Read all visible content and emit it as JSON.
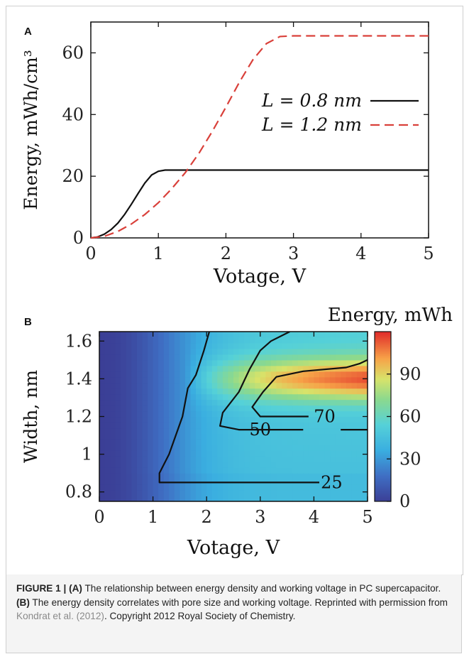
{
  "chart_data": [
    {
      "panel": "A",
      "type": "line",
      "xlabel": "Votage, V",
      "ylabel": "Energy, mWh/cm³",
      "xlim": [
        0,
        5
      ],
      "ylim": [
        0,
        70
      ],
      "xticks": [
        "0",
        "1",
        "2",
        "3",
        "4",
        "5"
      ],
      "yticks": [
        "0",
        "20",
        "40",
        "60"
      ],
      "legend_position": "right",
      "series": [
        {
          "name": "L = 0.8 nm",
          "color": "#111111",
          "style": "solid",
          "x": [
            0,
            0.1,
            0.2,
            0.3,
            0.4,
            0.5,
            0.6,
            0.7,
            0.8,
            0.9,
            1.0,
            1.1,
            1.2,
            1.4,
            2,
            3,
            4,
            5
          ],
          "y": [
            0,
            0.3,
            1.2,
            2.7,
            4.8,
            7.6,
            10.9,
            14.4,
            17.8,
            20.4,
            21.6,
            22,
            22,
            22,
            22,
            22,
            22,
            22
          ]
        },
        {
          "name": "L = 1.2 nm",
          "color": "#d9403a",
          "style": "dashed",
          "x": [
            0,
            0.2,
            0.4,
            0.6,
            0.8,
            1.0,
            1.2,
            1.4,
            1.6,
            1.8,
            2.0,
            2.2,
            2.4,
            2.6,
            2.8,
            3.0,
            3.5,
            4,
            5
          ],
          "y": [
            0,
            0.5,
            2.1,
            4.5,
            7.6,
            11.4,
            16.0,
            21.2,
            27.4,
            34.6,
            42.4,
            50.5,
            57.8,
            63.0,
            65.3,
            65.5,
            65.5,
            65.5,
            65.5
          ]
        }
      ]
    },
    {
      "panel": "B",
      "type": "heatmap",
      "colorbar_label": "Energy, mWh",
      "xlabel": "Votage, V",
      "ylabel": "Width, nm",
      "xlim": [
        0,
        5
      ],
      "ylim": [
        0.75,
        1.65
      ],
      "xticks": [
        "0",
        "1",
        "2",
        "3",
        "4",
        "5"
      ],
      "yticks": [
        "0.8",
        "1",
        "1.2",
        "1.4",
        "1.6"
      ],
      "colorbar_ticks": [
        "0",
        "30",
        "60",
        "90"
      ],
      "colorbar_range": [
        0,
        120
      ],
      "contour_labels": [
        {
          "text": "25",
          "level": 25
        },
        {
          "text": "50",
          "level": 50
        },
        {
          "text": "70",
          "level": 70
        }
      ],
      "contours": [
        {
          "level": 25,
          "points": [
            [
              4.1,
              0.85
            ],
            [
              1.12,
              0.85
            ],
            [
              1.12,
              0.9
            ],
            [
              1.3,
              1.0
            ],
            [
              1.55,
              1.2
            ],
            [
              1.65,
              1.35
            ],
            [
              1.8,
              1.42
            ],
            [
              1.95,
              1.55
            ],
            [
              2.05,
              1.65
            ]
          ]
        },
        {
          "level": 50,
          "points": [
            [
              3.8,
              1.13
            ],
            [
              2.6,
              1.13
            ],
            [
              2.25,
              1.15
            ],
            [
              2.3,
              1.22
            ],
            [
              2.6,
              1.33
            ],
            [
              2.8,
              1.45
            ],
            [
              3.0,
              1.55
            ],
            [
              3.2,
              1.6
            ],
            [
              3.55,
              1.65
            ]
          ]
        },
        {
          "level": 70,
          "points": [
            [
              3.9,
              1.2
            ],
            [
              3.0,
              1.2
            ],
            [
              2.85,
              1.25
            ],
            [
              3.05,
              1.33
            ],
            [
              3.3,
              1.41
            ],
            [
              3.8,
              1.44
            ],
            [
              4.6,
              1.46
            ],
            [
              4.85,
              1.48
            ],
            [
              5.0,
              1.5
            ]
          ]
        },
        {
          "level": 50,
          "points": [
            [
              4.5,
              1.13
            ],
            [
              5.0,
              1.13
            ]
          ]
        }
      ]
    }
  ],
  "panel_labels": [
    "A",
    "B"
  ],
  "caption": {
    "figure_label": "FIGURE 1 | ",
    "part_a": "(A)",
    "text_a": " The relationship between energy density and working voltage in PC supercapacitor. ",
    "part_b": "(B)",
    "text_b": " The energy density correlates with pore size and working voltage. Reprinted with permission from ",
    "citation": "Kondrat et al. (2012)",
    "text_end": ". Copyright 2012 Royal Society of Chemistry."
  },
  "colors": {
    "black_line": "#111111",
    "red_dash": "#d9403a",
    "caption_bg": "#f4f4f4"
  }
}
